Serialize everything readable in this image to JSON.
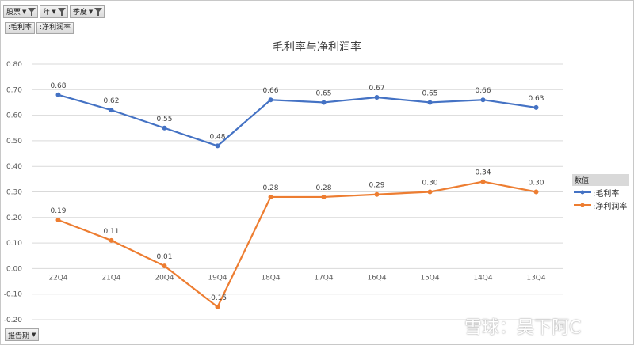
{
  "filters": [
    {
      "label": "股票"
    },
    {
      "label": "年"
    },
    {
      "label": "季度"
    }
  ],
  "series_tags": [
    ":毛利率",
    ":净利润率"
  ],
  "report_button": "报告期",
  "legend_title": "数值",
  "watermark": "雪球：吴下阿C",
  "colors": {
    "gross": "#4472c4",
    "net": "#ed7d31"
  },
  "chart_data": {
    "type": "line",
    "title": "毛利率与净利润率",
    "categories": [
      "22Q4",
      "21Q4",
      "20Q4",
      "19Q4",
      "18Q4",
      "17Q4",
      "16Q4",
      "15Q4",
      "14Q4",
      "13Q4"
    ],
    "ylim": [
      -0.2,
      0.8
    ],
    "yticks": [
      "-0.20",
      "-0.10",
      "0.00",
      "0.10",
      "0.20",
      "0.30",
      "0.40",
      "0.50",
      "0.60",
      "0.70",
      "0.80"
    ],
    "grid": true,
    "legend": "right",
    "series": [
      {
        "name": ":毛利率",
        "values": [
          0.68,
          0.62,
          0.55,
          0.48,
          0.66,
          0.65,
          0.67,
          0.65,
          0.66,
          0.63
        ],
        "labels": [
          "0.68",
          "0.62",
          "0.55",
          "0.48",
          "0.66",
          "0.65",
          "0.67",
          "0.65",
          "0.66",
          "0.63"
        ]
      },
      {
        "name": ":净利润率",
        "values": [
          0.19,
          0.11,
          0.01,
          -0.15,
          0.28,
          0.28,
          0.29,
          0.3,
          0.34,
          0.3
        ],
        "labels": [
          "0.19",
          "0.11",
          "0.01",
          "-0.15",
          "0.28",
          "0.28",
          "0.29",
          "0.30",
          "0.34",
          "0.30"
        ]
      }
    ]
  }
}
